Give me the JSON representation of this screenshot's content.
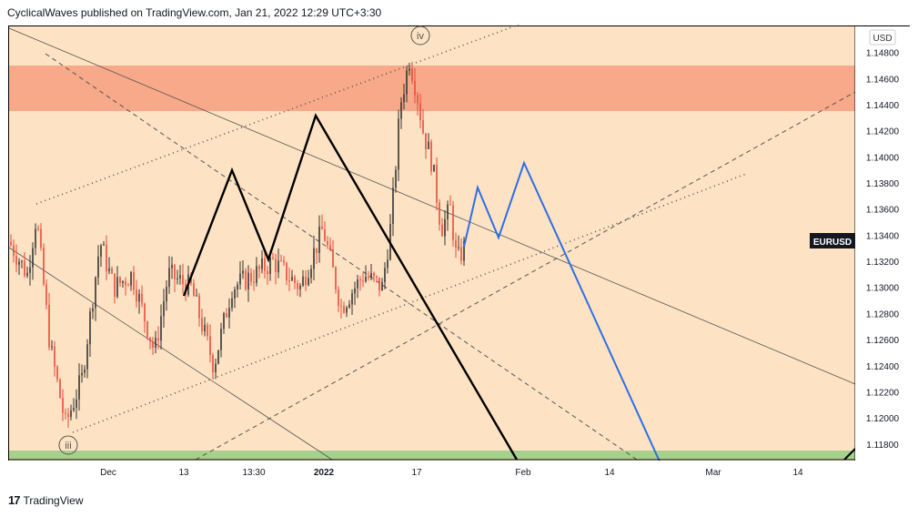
{
  "header": {
    "published_text": "CyclicalWaves published on TradingView.com, Jan 21, 2022 12:29 UTC+3:30"
  },
  "footer": {
    "brand_logo": "17",
    "brand_name": "TradingView"
  },
  "colors": {
    "background": "#fde3c4",
    "resistance_zone": "#f7a98a",
    "support_zone": "#a8d08d",
    "candle_up": "#333333",
    "candle_down": "#e84a3b",
    "projection": "#2e6ee6",
    "wave_path": "#000000"
  },
  "chart_data": {
    "type": "candlestick",
    "symbol": "EURUSD",
    "currency": "USD",
    "y_ticks": [
      "1.14800",
      "1.14600",
      "1.14400",
      "1.14200",
      "1.14000",
      "1.13800",
      "1.13600",
      "1.13400",
      "1.13200",
      "1.13000",
      "1.12800",
      "1.12600",
      "1.12400",
      "1.12200",
      "1.12000",
      "1.11800"
    ],
    "x_ticks": [
      "Dec",
      "13",
      "13:30",
      "2022",
      "17",
      "Feb",
      "14",
      "Mar",
      "14"
    ],
    "ylim": [
      1.1168,
      1.15
    ],
    "wave_labels": [
      "iv",
      "iii"
    ],
    "zones": [
      {
        "name": "resistance",
        "from": 1.1435,
        "to": 1.147
      },
      {
        "name": "support",
        "from": 1.1168,
        "to": 1.1176
      }
    ],
    "candles_summary": {
      "low": 1.1186,
      "high": 1.1483,
      "last": 1.1331
    },
    "projection_path": [
      1.133,
      1.1375,
      1.1339,
      1.1394,
      1.1168
    ],
    "wave_path": [
      1.1294,
      1.139,
      1.132,
      1.143,
      1.1168
    ]
  }
}
